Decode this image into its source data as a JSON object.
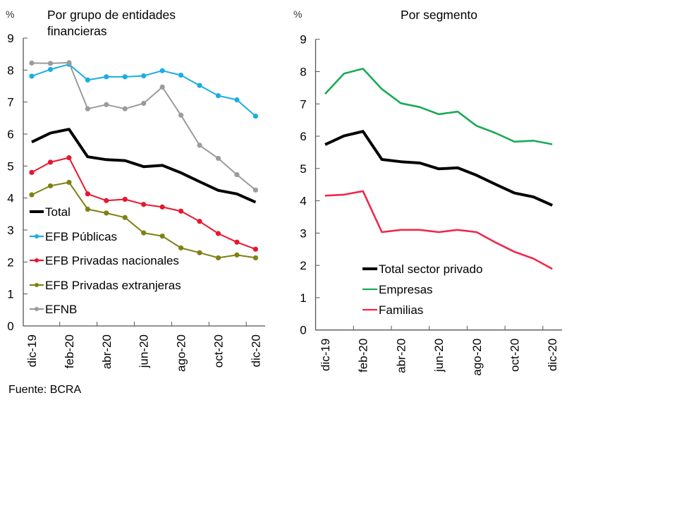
{
  "source": "Fuente: BCRA",
  "chart_data": [
    {
      "type": "line",
      "title": "Por grupo de entidades financieras",
      "title_lines": [
        "Por grupo de entidades",
        "financieras"
      ],
      "ylabel": "%",
      "ylim": [
        0,
        9
      ],
      "yticks": [
        "0",
        "1",
        "2",
        "3",
        "4",
        "5",
        "6",
        "7",
        "8",
        "9"
      ],
      "x": [
        "dic-19",
        "ene-20",
        "feb-20",
        "mar-20",
        "abr-20",
        "may-20",
        "jun-20",
        "jul-20",
        "ago-20",
        "sep-20",
        "oct-20",
        "nov-20",
        "dic-20"
      ],
      "xticks": [
        "dic-19",
        "feb-20",
        "abr-20",
        "jun-20",
        "ago-20",
        "oct-20",
        "dic-20"
      ],
      "legend_position": "bottom-left",
      "series": [
        {
          "name": "Total",
          "color": "#000000",
          "markers": false,
          "values": [
            5.75,
            6.03,
            6.15,
            5.29,
            5.2,
            5.17,
            4.98,
            5.02,
            4.79,
            4.51,
            4.24,
            4.13,
            3.87
          ]
        },
        {
          "name": "EFB Públicas",
          "color": "#1BADE3",
          "markers": true,
          "values": [
            7.81,
            8.02,
            8.18,
            7.69,
            7.79,
            7.79,
            7.82,
            7.98,
            7.84,
            7.52,
            7.2,
            7.07,
            6.56
          ]
        },
        {
          "name": "EFB Privadas nacionales",
          "color": "#E8162F",
          "markers": true,
          "values": [
            4.8,
            5.12,
            5.26,
            4.13,
            3.92,
            3.96,
            3.8,
            3.72,
            3.59,
            3.27,
            2.89,
            2.62,
            2.4
          ]
        },
        {
          "name": "EFB Privadas extranjeras",
          "color": "#808014",
          "markers": true,
          "values": [
            4.1,
            4.38,
            4.49,
            3.65,
            3.53,
            3.39,
            2.91,
            2.81,
            2.44,
            2.29,
            2.13,
            2.22,
            2.13
          ]
        },
        {
          "name": "EFNB",
          "color": "#9B9B9B",
          "markers": true,
          "values": [
            8.22,
            8.21,
            8.23,
            6.79,
            6.92,
            6.79,
            6.96,
            7.47,
            6.59,
            5.65,
            5.24,
            4.73,
            4.25
          ]
        }
      ]
    },
    {
      "type": "line",
      "title": "Por segmento",
      "title_lines": [
        "Por segmento"
      ],
      "ylabel": "%",
      "ylim": [
        0,
        9
      ],
      "yticks": [
        "0",
        "1",
        "2",
        "3",
        "4",
        "5",
        "6",
        "7",
        "8",
        "9"
      ],
      "x": [
        "dic-19",
        "ene-20",
        "feb-20",
        "mar-20",
        "abr-20",
        "may-20",
        "jun-20",
        "jul-20",
        "ago-20",
        "sep-20",
        "oct-20",
        "nov-20",
        "dic-20"
      ],
      "xticks": [
        "dic-19",
        "feb-20",
        "abr-20",
        "jun-20",
        "ago-20",
        "oct-20",
        "dic-20"
      ],
      "legend_position": "bottom-center",
      "series": [
        {
          "name": "Total sector privado",
          "color": "#000000",
          "markers": false,
          "values": [
            5.74,
            6.01,
            6.15,
            5.28,
            5.21,
            5.17,
            4.99,
            5.02,
            4.79,
            4.51,
            4.24,
            4.12,
            3.86
          ]
        },
        {
          "name": "Empresas",
          "color": "#1AAA55",
          "markers": false,
          "values": [
            7.31,
            7.94,
            8.09,
            7.46,
            7.02,
            6.9,
            6.68,
            6.76,
            6.32,
            6.1,
            5.83,
            5.86,
            5.75
          ]
        },
        {
          "name": "Familias",
          "color": "#F0284A",
          "markers": false,
          "values": [
            4.16,
            4.19,
            4.3,
            3.03,
            3.1,
            3.1,
            3.03,
            3.1,
            3.03,
            2.71,
            2.42,
            2.21,
            1.89
          ]
        }
      ]
    }
  ]
}
